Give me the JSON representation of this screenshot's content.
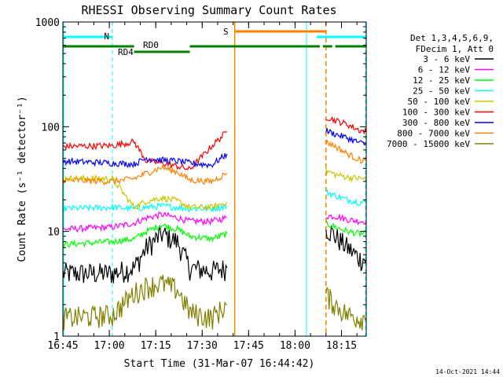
{
  "chart_data": {
    "type": "line",
    "title": "RHESSI Observing Summary Count Rates",
    "xlabel": "Start Time (31-Mar-07 16:44:42)",
    "ylabel": "Count Rate (s⁻¹ detector⁻¹)",
    "yscale": "log",
    "ylim": [
      1,
      1000
    ],
    "xlim": [
      "16:45",
      "18:23"
    ],
    "x_ticks": [
      "16:45",
      "17:00",
      "17:15",
      "17:30",
      "17:45",
      "18:00",
      "18:15"
    ],
    "y_ticks": [
      "1",
      "10",
      "100",
      "1000"
    ],
    "grid": false,
    "legend_position": "right",
    "legend_header": [
      "Det 1,3,4,5,6,9,",
      "FDecim 1, Att 0"
    ],
    "timestamp": "14-Oct-2021 14:44",
    "flags": {
      "night_label": "N",
      "saa_label": "S",
      "rd0_label": "RD0",
      "rd4_label": "RD4",
      "night_intervals": [
        [
          "16:45",
          "17:01"
        ],
        [
          "18:07",
          "18:23"
        ]
      ],
      "saa_interval": [
        "17:40",
        "18:10"
      ],
      "decim_intervals": [
        [
          "16:45",
          "17:08"
        ],
        [
          "17:08",
          "17:26"
        ],
        [
          "17:26",
          "18:08"
        ],
        [
          "18:09",
          "18:12"
        ],
        [
          "18:13",
          "18:23"
        ]
      ]
    },
    "colors": {
      "night": "#00ffff",
      "saa": "#ff8000",
      "decim": "#008000"
    },
    "series": [
      {
        "name": "3 - 6 keV",
        "color": "#000000",
        "x": [
          "16:45",
          "17:01",
          "17:08",
          "17:12",
          "17:17",
          "17:22",
          "17:26",
          "17:33",
          "17:38",
          "18:10",
          "18:13",
          "18:17",
          "18:21",
          "18:23"
        ],
        "values": [
          4,
          4,
          4.5,
          7,
          9.5,
          8,
          4.5,
          4.2,
          4.5,
          11,
          9,
          7,
          5.5,
          5.5
        ]
      },
      {
        "name": "6 - 12 keV",
        "color": "#ff00ff",
        "x": [
          "16:45",
          "17:01",
          "17:08",
          "17:12",
          "17:17",
          "17:22",
          "17:26",
          "17:33",
          "17:38",
          "18:10",
          "18:13",
          "18:17",
          "18:21",
          "18:23"
        ],
        "values": [
          10.5,
          11,
          12,
          13.5,
          14.5,
          13.5,
          12.5,
          12.5,
          13.5,
          14,
          14,
          13,
          12.5,
          12.5
        ]
      },
      {
        "name": "12 - 25 keV",
        "color": "#00ff00",
        "x": [
          "16:45",
          "17:01",
          "17:08",
          "17:12",
          "17:17",
          "17:22",
          "17:26",
          "17:33",
          "17:38",
          "18:10",
          "18:13",
          "18:17",
          "18:21",
          "18:23"
        ],
        "values": [
          7.5,
          8,
          8.5,
          10,
          11.5,
          10.5,
          9,
          8.5,
          9.5,
          12,
          11,
          10,
          9.5,
          9.5
        ]
      },
      {
        "name": "25 - 50 keV",
        "color": "#00ffff",
        "x": [
          "16:45",
          "17:01",
          "17:08",
          "17:12",
          "17:17",
          "17:22",
          "17:26",
          "17:33",
          "17:38",
          "18:10",
          "18:13",
          "18:17",
          "18:21",
          "18:23"
        ],
        "values": [
          16.5,
          17,
          16.5,
          17,
          17.5,
          17,
          16.5,
          16.5,
          17.5,
          24,
          22,
          20,
          19,
          19
        ]
      },
      {
        "name": "50 - 100 keV",
        "color": "#c8c800",
        "x": [
          "16:45",
          "17:01",
          "17:08",
          "17:12",
          "17:17",
          "17:22",
          "17:26",
          "17:33",
          "17:38",
          "18:10",
          "18:13",
          "18:17",
          "18:21",
          "18:23"
        ],
        "values": [
          32,
          32,
          17,
          19.5,
          21,
          19.5,
          17,
          17,
          19,
          38,
          35,
          33,
          32,
          32
        ]
      },
      {
        "name": "100 - 300 keV",
        "color": "#ff0000",
        "x": [
          "16:45",
          "17:01",
          "17:08",
          "17:12",
          "17:17",
          "17:22",
          "17:26",
          "17:33",
          "17:38",
          "18:10",
          "18:13",
          "18:17",
          "18:21",
          "18:23"
        ],
        "values": [
          65,
          66,
          72,
          47,
          45,
          42,
          39,
          65,
          90,
          125,
          115,
          105,
          92,
          90
        ]
      },
      {
        "name": "300 - 800 keV",
        "color": "#0000ff",
        "x": [
          "16:45",
          "17:01",
          "17:08",
          "17:12",
          "17:17",
          "17:22",
          "17:26",
          "17:33",
          "17:38",
          "18:10",
          "18:13",
          "18:17",
          "18:21",
          "18:23"
        ],
        "values": [
          47,
          45,
          44,
          50,
          48,
          47,
          45,
          43,
          55,
          92,
          85,
          78,
          70,
          68
        ]
      },
      {
        "name": "800 - 7000 keV",
        "color": "#ff8000",
        "x": [
          "16:45",
          "17:01",
          "17:08",
          "17:12",
          "17:17",
          "17:22",
          "17:26",
          "17:33",
          "17:38",
          "18:10",
          "18:13",
          "18:17",
          "18:21",
          "18:23"
        ],
        "values": [
          31,
          30,
          32,
          36,
          41,
          37,
          31,
          30,
          36,
          72,
          65,
          55,
          48,
          47
        ]
      },
      {
        "name": "7000 - 15000 keV",
        "color": "#808000",
        "x": [
          "16:45",
          "17:01",
          "17:08",
          "17:12",
          "17:17",
          "17:22",
          "17:26",
          "17:33",
          "17:38",
          "18:10",
          "18:13",
          "18:17",
          "18:21",
          "18:23"
        ],
        "values": [
          1.5,
          1.6,
          2.6,
          3,
          3.2,
          2.8,
          1.7,
          1.5,
          2,
          2.5,
          2,
          1.6,
          1.5,
          1.5
        ]
      }
    ]
  }
}
